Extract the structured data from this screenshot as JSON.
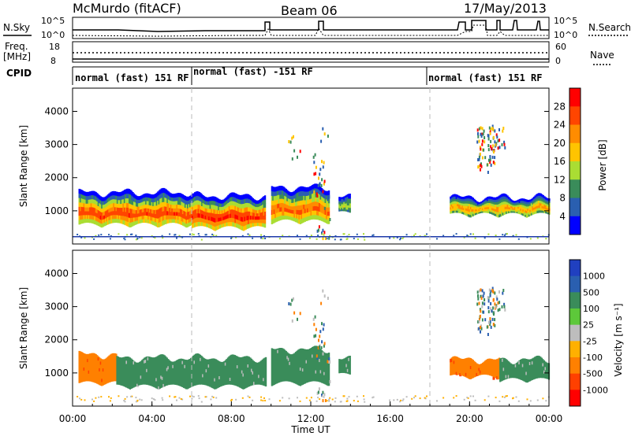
{
  "header": {
    "station": "McMurdo (fitACF)",
    "beam": "Beam 06",
    "date": "17/May/2013"
  },
  "noise_panel": {
    "left_label": "N.Sky",
    "right_label": "N.Search",
    "left_ticks": [
      "10^5",
      "10^0"
    ],
    "right_ticks": [
      "10^5",
      "10^0"
    ]
  },
  "freq_panel": {
    "left_label_line1": "Freq.",
    "left_label_line2": "[MHz]",
    "right_label": "Nave",
    "left_ticks": [
      "18",
      "8"
    ],
    "right_ticks": [
      "60",
      "0"
    ]
  },
  "cpid_panel": {
    "label": "CPID",
    "segments": [
      {
        "text": "normal (fast) 151 RF",
        "start_h": 0,
        "end_h": 6
      },
      {
        "text": "normal (fast) -151 RF",
        "start_h": 6,
        "end_h": 18
      },
      {
        "text": "normal (fast) 151 RF",
        "start_h": 18,
        "end_h": 24
      }
    ]
  },
  "x_axis": {
    "title": "Time UT",
    "ticks": [
      "00:00",
      "04:00",
      "08:00",
      "12:00",
      "16:00",
      "20:00",
      "00:00"
    ],
    "tick_hours": [
      0,
      4,
      8,
      12,
      16,
      20,
      24
    ]
  },
  "power_colorbar": {
    "title": "Power [dB]",
    "labels": [
      "28",
      "24",
      "20",
      "16",
      "12",
      "8",
      "4"
    ],
    "colors": [
      "#ff0000",
      "#ff4500",
      "#ff8c00",
      "#ffc400",
      "#aadd33",
      "#3a8c5a",
      "#2a5fb0",
      "#0000ff"
    ]
  },
  "velocity_colorbar": {
    "title": "Velocity [m s^-1]",
    "labels": [
      "1000",
      "500",
      "100",
      "25",
      "-25",
      "-100",
      "-500",
      "-1000"
    ],
    "colors": [
      "#2040c0",
      "#2a5fb0",
      "#3a8c5a",
      "#5dc83a",
      "#bdbdbd",
      "#ffb000",
      "#ff8000",
      "#ff4000",
      "#ff0000"
    ]
  },
  "chart_data": [
    {
      "type": "heatmap",
      "title": "Power",
      "xlabel": "Time UT",
      "ylabel": "Slant Range [km]",
      "xlim_hours": [
        0,
        24
      ],
      "ylim": [
        0,
        4700
      ],
      "yticks": [
        1000,
        2000,
        3000,
        4000
      ],
      "colorbar_label": "Power [dB]",
      "colorbar_range": [
        0,
        32
      ],
      "main_echo_regions": [
        {
          "t0": 0.3,
          "t1": 6.0,
          "range_min": 500,
          "range_max": 1550,
          "peak_db": 28
        },
        {
          "t0": 6.0,
          "t1": 9.7,
          "range_min": 400,
          "range_max": 1450,
          "peak_db": 30
        },
        {
          "t0": 10.0,
          "t1": 12.9,
          "range_min": 600,
          "range_max": 1700,
          "peak_db": 26
        },
        {
          "t0": 13.4,
          "t1": 14.0,
          "range_min": 850,
          "range_max": 1400,
          "peak_db": 16
        },
        {
          "t0": 19.0,
          "t1": 24.0,
          "range_min": 800,
          "range_max": 1400,
          "peak_db": 22
        }
      ]
    },
    {
      "type": "heatmap",
      "title": "Velocity",
      "xlabel": "Time UT",
      "ylabel": "Slant Range [km]",
      "xlim_hours": [
        0,
        24
      ],
      "ylim": [
        0,
        4700
      ],
      "yticks": [
        1000,
        2000,
        3000,
        4000
      ],
      "colorbar_label": "Velocity [m s^-1]",
      "colorbar_range": [
        -1000,
        1000
      ],
      "main_echo_regions": [
        {
          "t0": 0.3,
          "t1": 2.2,
          "range_min": 600,
          "range_max": 1550,
          "velocity": -300
        },
        {
          "t0": 2.2,
          "t1": 9.7,
          "range_min": 500,
          "range_max": 1450,
          "velocity": 80
        },
        {
          "t0": 10.0,
          "t1": 12.9,
          "range_min": 600,
          "range_max": 1700,
          "velocity": 80
        },
        {
          "t0": 13.4,
          "t1": 14.0,
          "range_min": 850,
          "range_max": 1400,
          "velocity": 150
        },
        {
          "t0": 19.0,
          "t1": 21.5,
          "range_min": 800,
          "range_max": 1400,
          "velocity": -300
        },
        {
          "t0": 21.5,
          "t1": 24.0,
          "range_min": 700,
          "range_max": 1400,
          "velocity": 100
        }
      ]
    }
  ]
}
